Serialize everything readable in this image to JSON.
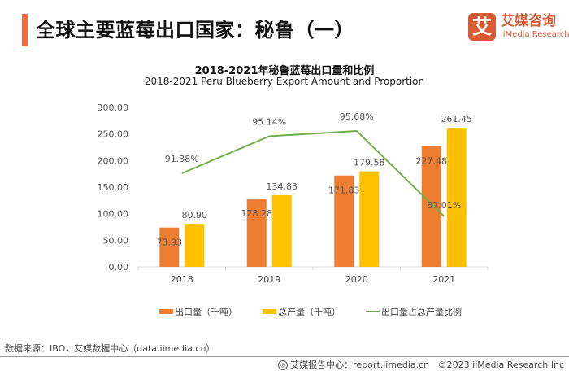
{
  "header": {
    "title": "全球主要蓝莓出口国家：秘鲁（一）",
    "accent_color": "#f26a3d"
  },
  "logo": {
    "mark": "艾",
    "name_cn": "艾媒咨询",
    "name_en": "iiMedia Research",
    "color": "#d95b35"
  },
  "chart_data": {
    "type": "bar",
    "title": "2018-2021年秘鲁蓝莓出口量和比例",
    "subtitle": "2018-2021 Peru Blueberry Export Amount and Proportion",
    "categories": [
      "2018",
      "2019",
      "2020",
      "2021"
    ],
    "ylim": [
      0,
      300
    ],
    "yticks": [
      0,
      50,
      100,
      150,
      200,
      250,
      300
    ],
    "ytick_labels": [
      "0.00",
      "50.00",
      "100.00",
      "150.00",
      "200.00",
      "250.00",
      "300.00"
    ],
    "grid": false,
    "series": [
      {
        "name": "出口量（千吨）",
        "type": "bar",
        "color": "#ed7d31",
        "values": [
          73.93,
          128.28,
          171.83,
          227.48
        ],
        "labels": [
          "73.93",
          "128.28",
          "171.83",
          "227.48"
        ]
      },
      {
        "name": "总产量（千吨）",
        "type": "bar",
        "color": "#ffc000",
        "values": [
          80.9,
          134.83,
          179.58,
          261.45
        ],
        "labels": [
          "80.90",
          "134.83",
          "179.58",
          "261.45"
        ]
      },
      {
        "name": "出口量占总产量比例",
        "type": "line",
        "axis": "secondary",
        "color": "#70ad47",
        "values": [
          91.38,
          95.14,
          95.68,
          87.01
        ],
        "labels": [
          "91.38%",
          "95.14%",
          "95.68%",
          "87.01%"
        ]
      }
    ],
    "legend_position": "bottom"
  },
  "footer": {
    "source": "数据来源：IBO，艾媒数据中心（data.iimedia.cn）",
    "report_center": "艾媒报告中心：report.iimedia.cn",
    "copyright": "©2023  iiMedia Research  Inc",
    "globe_icon": "globe-icon"
  }
}
